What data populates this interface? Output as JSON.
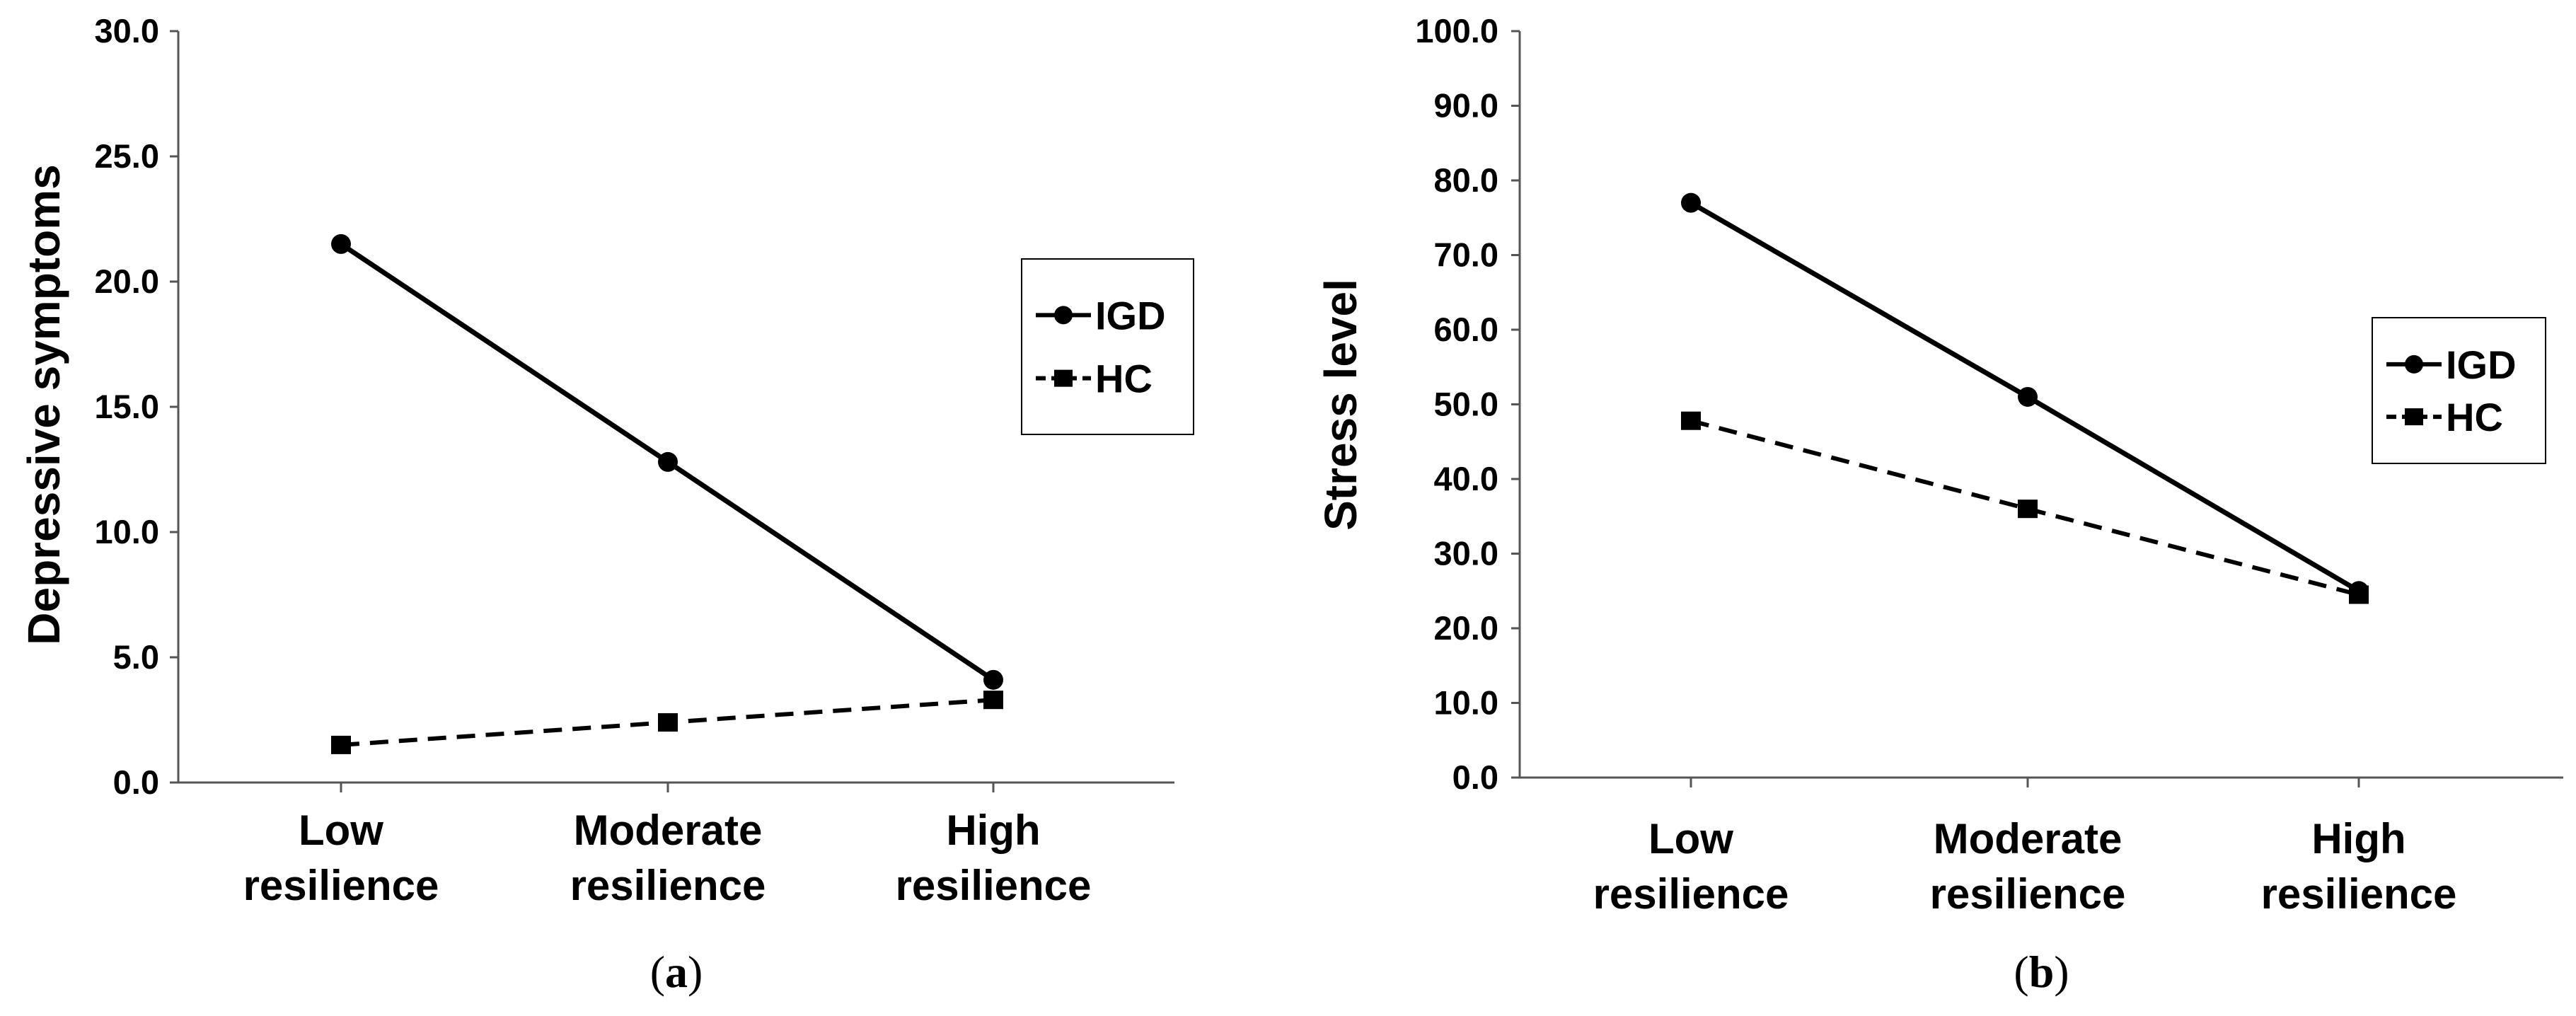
{
  "chart_data": [
    {
      "type": "line",
      "panel_label": "a",
      "title": "",
      "xlabel": "",
      "ylabel": "Depressive symptoms",
      "categories": [
        [
          "Low",
          "resilience"
        ],
        [
          "Moderate",
          "resilience"
        ],
        [
          "High",
          "resilience"
        ]
      ],
      "ylim": [
        0,
        30
      ],
      "yticks": [
        "0.0",
        "5.0",
        "10.0",
        "15.0",
        "20.0",
        "25.0",
        "30.0"
      ],
      "series": [
        {
          "name": "IGD",
          "values": [
            21.5,
            12.8,
            4.1
          ],
          "marker": "circle",
          "line": "solid"
        },
        {
          "name": "HC",
          "values": [
            1.5,
            2.4,
            3.3
          ],
          "marker": "square",
          "line": "dashed"
        }
      ],
      "legend": "right"
    },
    {
      "type": "line",
      "panel_label": "b",
      "title": "",
      "xlabel": "",
      "ylabel": "Stress level",
      "categories": [
        [
          "Low",
          "resilience"
        ],
        [
          "Moderate",
          "resilience"
        ],
        [
          "High",
          "resilience"
        ]
      ],
      "ylim": [
        0,
        100
      ],
      "yticks": [
        "0.0",
        "10.0",
        "20.0",
        "30.0",
        "40.0",
        "50.0",
        "60.0",
        "70.0",
        "80.0",
        "90.0",
        "100.0"
      ],
      "series": [
        {
          "name": "IGD",
          "values": [
            77.0,
            51.0,
            25.0
          ],
          "marker": "circle",
          "line": "solid"
        },
        {
          "name": "HC",
          "values": [
            47.8,
            36.0,
            24.5
          ],
          "marker": "square",
          "line": "dashed"
        }
      ],
      "legend": "right"
    }
  ]
}
